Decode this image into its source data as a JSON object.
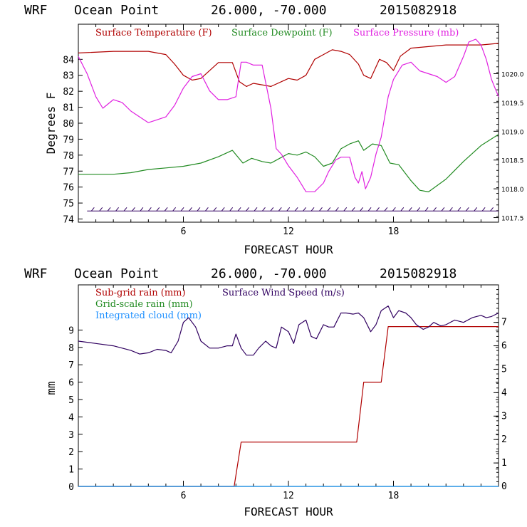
{
  "chart_data": [
    {
      "type": "line",
      "title": "WRF   Ocean Point   26.000, -70.000  2015082918",
      "title_parts": {
        "model": "WRF",
        "location": "Ocean Point",
        "coords": "26.000, -70.000",
        "run": "2015082918"
      },
      "xlabel": "FORECAST HOUR",
      "ylabel": "Degrees F",
      "y2label": "",
      "xlim": [
        0,
        24
      ],
      "ylim": [
        73.8,
        86.2
      ],
      "y2lim": [
        1017.42,
        1020.86
      ],
      "xticks": [
        6,
        12,
        18
      ],
      "yticks": [
        74,
        75,
        76,
        77,
        78,
        79,
        80,
        81,
        82,
        83,
        84
      ],
      "y2ticks": [
        1017.5,
        1018.0,
        1018.5,
        1019.0,
        1019.5,
        1020.0
      ],
      "y2tick_labels": [
        "1017.5",
        "1018.0",
        "1018.5",
        "1019.0",
        "1019.5",
        "1020.0"
      ],
      "grid": false,
      "legend": [
        {
          "label": "Surface Temperature (F)",
          "color": "#b00000"
        },
        {
          "label": "Surface Dewpoint (F)",
          "color": "#228b22"
        },
        {
          "label": "Surface Pressure (mb)",
          "color": "#e020e0"
        }
      ],
      "series": [
        {
          "name": "Surface Temperature (F)",
          "color": "#b00000",
          "axis": "left",
          "x": [
            0,
            2,
            4,
            5,
            5.5,
            6,
            6.5,
            7,
            8,
            8.8,
            9.2,
            9.6,
            10,
            11,
            12,
            12.5,
            13,
            13.5,
            14,
            14.5,
            15,
            15.5,
            16,
            16.3,
            16.7,
            17.2,
            17.6,
            18,
            18.4,
            19,
            20,
            21,
            22,
            23,
            24
          ],
          "y": [
            84.4,
            84.5,
            84.5,
            84.3,
            83.7,
            83.0,
            82.7,
            82.8,
            83.8,
            83.8,
            82.6,
            82.3,
            82.5,
            82.3,
            82.8,
            82.7,
            83.0,
            84.0,
            84.3,
            84.6,
            84.5,
            84.3,
            83.7,
            83.0,
            82.8,
            84.0,
            83.8,
            83.3,
            84.2,
            84.7,
            84.8,
            84.9,
            84.9,
            84.9,
            85.0
          ]
        },
        {
          "name": "Surface Dewpoint (F)",
          "color": "#228b22",
          "axis": "left",
          "x": [
            0,
            1,
            2,
            3,
            4,
            5,
            6,
            7,
            8,
            8.8,
            9.4,
            9.9,
            10.5,
            11,
            11.5,
            12,
            12.5,
            13,
            13.5,
            14,
            14.5,
            15,
            15.5,
            16,
            16.3,
            16.8,
            17.3,
            17.8,
            18.3,
            19,
            19.5,
            20,
            21,
            22,
            23,
            24
          ],
          "y": [
            76.8,
            76.8,
            76.8,
            76.9,
            77.1,
            77.2,
            77.3,
            77.5,
            77.9,
            78.3,
            77.5,
            77.8,
            77.6,
            77.5,
            77.8,
            78.1,
            78.0,
            78.2,
            77.9,
            77.3,
            77.5,
            78.4,
            78.7,
            78.9,
            78.3,
            78.7,
            78.6,
            77.5,
            77.4,
            76.4,
            75.8,
            75.7,
            76.5,
            77.6,
            78.6,
            79.3
          ]
        },
        {
          "name": "Surface Pressure (mb)",
          "color": "#e020e0",
          "axis": "right",
          "x": [
            0,
            0.5,
            1,
            1.4,
            2,
            2.5,
            3,
            3.5,
            4,
            4.5,
            5,
            5.5,
            6,
            6.5,
            7,
            7.5,
            8,
            8.5,
            9,
            9.3,
            9.6,
            10,
            10.5,
            11,
            11.3,
            11.6,
            12,
            12.5,
            13,
            13.5,
            14,
            14.3,
            14.7,
            15,
            15.5,
            15.8,
            16,
            16.2,
            16.4,
            16.7,
            17,
            17.3,
            17.7,
            18,
            18.5,
            19,
            19.5,
            20,
            20.5,
            21,
            21.5,
            22,
            22.3,
            22.7,
            23,
            23.3,
            23.6,
            24
          ],
          "y": [
            1020.3,
            1020.0,
            1019.6,
            1019.4,
            1019.55,
            1019.5,
            1019.35,
            1019.25,
            1019.15,
            1019.2,
            1019.25,
            1019.45,
            1019.75,
            1019.95,
            1020.0,
            1019.7,
            1019.55,
            1019.55,
            1019.6,
            1020.2,
            1020.2,
            1020.15,
            1020.15,
            1019.4,
            1018.7,
            1018.6,
            1018.4,
            1018.2,
            1017.95,
            1017.95,
            1018.1,
            1018.3,
            1018.5,
            1018.55,
            1018.55,
            1018.2,
            1018.1,
            1018.3,
            1018.0,
            1018.2,
            1018.6,
            1018.9,
            1019.6,
            1019.9,
            1020.15,
            1020.2,
            1020.05,
            1020.0,
            1019.95,
            1019.85,
            1019.95,
            1020.3,
            1020.55,
            1020.6,
            1020.5,
            1020.25,
            1019.9,
            1019.6
          ]
        }
      ],
      "wind_barbs": {
        "color": "#300060",
        "level": 74.5,
        "count": 50
      }
    },
    {
      "type": "line",
      "title": "WRF   Ocean Point   26.000, -70.000  2015082918",
      "title_parts": {
        "model": "WRF",
        "location": "Ocean Point",
        "coords": "26.000, -70.000",
        "run": "2015082918"
      },
      "xlabel": "FORECAST HOUR",
      "ylabel": "mm",
      "y2label": "",
      "xlim": [
        0,
        24
      ],
      "ylim": [
        0,
        11.6
      ],
      "y2lim": [
        0,
        8.6
      ],
      "xticks": [
        6,
        12,
        18
      ],
      "yticks": [
        0,
        1,
        2,
        3,
        4,
        5,
        6,
        7,
        8,
        9
      ],
      "y2ticks": [
        0,
        1,
        2,
        3,
        4,
        5,
        6,
        7
      ],
      "grid": false,
      "legend": [
        {
          "label": "Sub-grid rain (mm)",
          "color": "#b00000"
        },
        {
          "label": "Grid-scale rain (mm)",
          "color": "#228b22"
        },
        {
          "label": "Integrated cloud (mm)",
          "color": "#1e90ff"
        },
        {
          "label": "Surface Wind Speed (m/s)",
          "color": "#300060"
        }
      ],
      "series": [
        {
          "name": "Sub-grid rain (mm)",
          "color": "#b00000",
          "axis": "left",
          "x": [
            0,
            8.9,
            9.3,
            15.9,
            16.3,
            17.3,
            17.7,
            24
          ],
          "y": [
            0,
            0,
            2.55,
            2.55,
            6.0,
            6.0,
            9.2,
            9.2
          ]
        },
        {
          "name": "Grid-scale rain (mm)",
          "color": "#228b22",
          "axis": "left",
          "x": [
            0,
            24
          ],
          "y": [
            0,
            0
          ]
        },
        {
          "name": "Integrated cloud (mm)",
          "color": "#1e90ff",
          "axis": "left",
          "x": [
            0,
            24
          ],
          "y": [
            0,
            0
          ]
        },
        {
          "name": "Surface Wind Speed (m/s)",
          "color": "#300060",
          "axis": "right",
          "x": [
            0,
            1,
            2,
            3,
            3.5,
            4,
            4.5,
            5,
            5.3,
            5.7,
            6,
            6.3,
            6.7,
            7,
            7.5,
            8,
            8.5,
            8.8,
            9,
            9.3,
            9.6,
            10,
            10.3,
            10.7,
            11,
            11.3,
            11.6,
            12,
            12.3,
            12.6,
            13,
            13.3,
            13.6,
            14,
            14.3,
            14.6,
            15,
            15.3,
            15.7,
            16,
            16.3,
            16.7,
            17,
            17.3,
            17.7,
            18,
            18.3,
            18.7,
            19,
            19.3,
            19.7,
            20,
            20.3,
            20.7,
            21,
            21.5,
            22,
            22.5,
            23,
            23.3,
            23.6,
            24
          ],
          "y": [
            6.2,
            6.1,
            6.0,
            5.8,
            5.65,
            5.7,
            5.85,
            5.8,
            5.7,
            6.2,
            7.0,
            7.2,
            6.8,
            6.2,
            5.9,
            5.9,
            6.0,
            6.0,
            6.5,
            5.9,
            5.6,
            5.6,
            5.9,
            6.2,
            6.0,
            5.9,
            6.8,
            6.6,
            6.1,
            6.9,
            7.1,
            6.4,
            6.3,
            6.9,
            6.8,
            6.8,
            7.4,
            7.4,
            7.35,
            7.4,
            7.2,
            6.6,
            6.9,
            7.5,
            7.7,
            7.2,
            7.5,
            7.4,
            7.2,
            6.9,
            6.7,
            6.8,
            7.0,
            6.85,
            6.9,
            7.1,
            7.0,
            7.2,
            7.3,
            7.2,
            7.25,
            7.4
          ]
        }
      ]
    }
  ]
}
